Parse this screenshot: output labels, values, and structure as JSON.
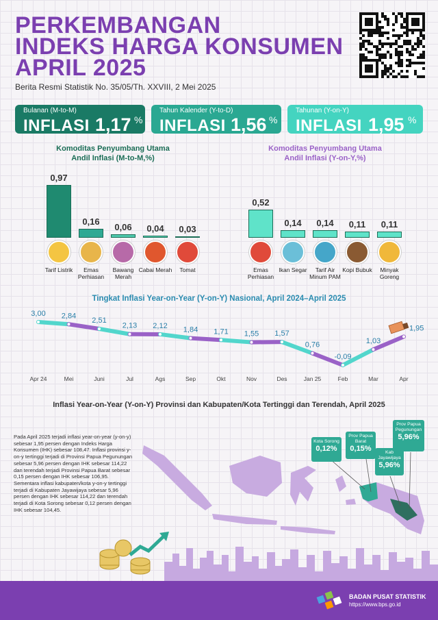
{
  "header": {
    "title_lines": [
      "PERKEMBANGAN",
      "INDEKS HARGA KONSUMEN",
      "APRIL 2025"
    ],
    "subtitle": "Berita Resmi Statistik No. 35/05/Th. XXVIII, 2 Mei 2025"
  },
  "cards": [
    {
      "label": "Bulanan (M-to-M)",
      "word": "INFLASI",
      "value": "1,17",
      "unit": "%",
      "color": "#1a7a65"
    },
    {
      "label": "Tahun Kalender (Y-to-D)",
      "word": "INFLASI",
      "value": "1,56",
      "unit": "%",
      "color": "#2aa892"
    },
    {
      "label": "Tahunan (Y-on-Y)",
      "word": "INFLASI",
      "value": "1,95",
      "unit": "%",
      "color": "#44d4c0"
    }
  ],
  "colors": {
    "purple": "#7b3fb0",
    "teal_dark": "#1a7a65",
    "teal_mid": "#2aa892",
    "teal_light": "#5fe3c9",
    "line_teal": "#52d6cc",
    "line_purple": "#9a62c7",
    "map_land": "#c8abe0"
  },
  "chart_data": [
    {
      "type": "bar",
      "title_lines": [
        "Komoditas Penyumbang Utama",
        "Andil Inflasi (M-to-M,%)"
      ],
      "categories": [
        "Tarif Listrik",
        "Emas Perhiasan",
        "Bawang Merah",
        "Cabai Merah",
        "Tomat"
      ],
      "values": [
        0.97,
        0.16,
        0.06,
        0.04,
        0.03
      ],
      "value_labels": [
        "0,97",
        "0,16",
        "0,06",
        "0,04",
        "0,03"
      ],
      "icons": [
        "lightbulb-icon",
        "gold-jewelry-icon",
        "shallot-icon",
        "chili-icon",
        "tomato-icon"
      ]
    },
    {
      "type": "bar",
      "title_lines": [
        "Komoditas Penyumbang Utama",
        "Andil Inflasi (Y-on-Y,%)"
      ],
      "categories": [
        "Emas Perhiasan",
        "Ikan Segar",
        "Tarif Air Minum PAM",
        "Kopi Bubuk",
        "Minyak Goreng"
      ],
      "values": [
        0.52,
        0.14,
        0.14,
        0.11,
        0.11
      ],
      "value_labels": [
        "0,52",
        "0,14",
        "0,14",
        "0,11",
        "0,11"
      ],
      "icons": [
        "gold-jewelry-icon",
        "fish-icon",
        "water-tap-icon",
        "coffee-icon",
        "cooking-oil-icon"
      ]
    },
    {
      "type": "line",
      "title": "Tingkat Inflasi Year-on-Year (Y-on-Y) Nasional, April 2024–April 2025",
      "x": [
        "Apr 24",
        "Mei",
        "Juni",
        "Jul",
        "Ags",
        "Sep",
        "Okt",
        "Nov",
        "Des",
        "Jan 25",
        "Feb",
        "Mar",
        "Apr"
      ],
      "values": [
        3.0,
        2.84,
        2.51,
        2.13,
        2.12,
        1.84,
        1.71,
        1.55,
        1.57,
        0.76,
        -0.09,
        1.03,
        1.95
      ],
      "value_labels": [
        "3,00",
        "2,84",
        "2,51",
        "2,13",
        "2,12",
        "1,84",
        "1,71",
        "1,55",
        "1,57",
        "0,76",
        "-0,09",
        "1,03",
        "1,95"
      ],
      "ylim": [
        -0.09,
        3.0
      ]
    }
  ],
  "provinces": {
    "title": "Inflasi Year-on-Year (Y-on-Y) Provinsi dan Kabupaten/Kota Tertinggi dan Terendah, April 2025",
    "paragraph": "Pada April 2025 terjadi inflasi year-on-year (y-on-y) sebesar 1,95 persen dengan Indeks Harga Konsumen (IHK) sebesar 108,47. Inflasi provinsi y-on-y tertinggi terjadi di Provinsi Papua Pegunungan sebesar 5,96 persen dengan IHK sebesar 114,22 dan terendah terjadi Provinsi Papua Barat sebesar 0,15 persen dengan IHK sebesar 106,95. Sementara inflasi kabupaten/kota y-on-y tertinggi terjadi di Kabupaten Jayawijaya sebesar 5,96 persen dengan IHK sebesar 114,22 dan terendah terjadi di Kota Sorong sebesar 0,12 persen dengan IHK sebesar 104,45.",
    "flags": [
      {
        "name": "Kota Sorong",
        "value": "0,12%"
      },
      {
        "name": "Prov Papua Barat",
        "value": "0,15%"
      },
      {
        "name": "Kab Jayawijaya",
        "value": "5,96%"
      },
      {
        "name": "Prov Papua Pegunungan",
        "value": "5,96%"
      }
    ]
  },
  "footer": {
    "org": "BADAN PUSAT STATISTIK",
    "url": "https://www.bps.go.id",
    "logo": "bps-logo-icon",
    "qr": "qr-code-icon"
  }
}
